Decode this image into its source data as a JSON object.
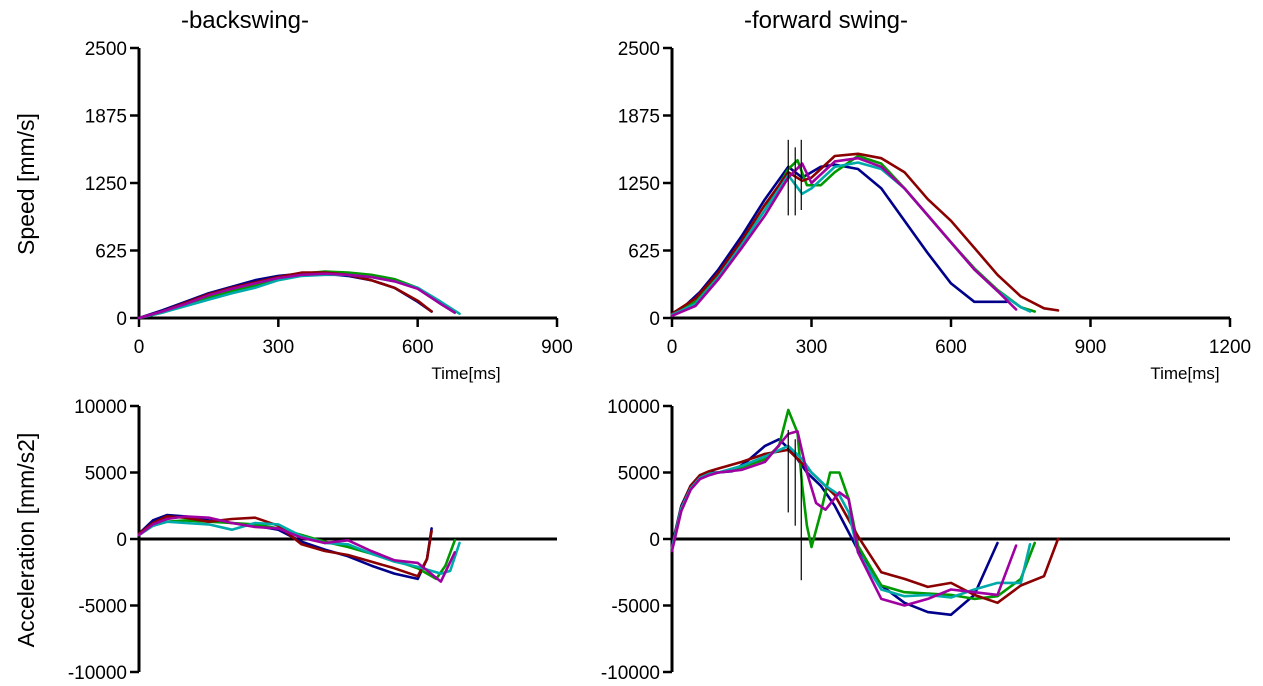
{
  "column_titles": {
    "backswing": "-backswing-",
    "forward": "-forward swing-"
  },
  "row_titles": {
    "speed": "Speed [mm/s]",
    "acceleration": "Acceleration [mm/s2]"
  },
  "series_colors": [
    "#00008B",
    "#009900",
    "#8B0000",
    "#00AAAA",
    "#A000A0"
  ],
  "chart_data": [
    {
      "id": "speed-backswing",
      "type": "line",
      "xlabel": "Time[ms]",
      "ylabel": "Speed [mm/s]",
      "xlim": [
        0,
        900
      ],
      "ylim": [
        0,
        2500
      ],
      "xticks": [
        0,
        300,
        600,
        900
      ],
      "yticks": [
        0,
        625,
        1250,
        1875,
        2500
      ],
      "series": [
        {
          "color": "#00008B",
          "x": [
            0,
            50,
            100,
            150,
            200,
            250,
            300,
            350,
            400,
            450,
            500,
            550,
            600,
            630
          ],
          "y": [
            0,
            70,
            150,
            230,
            290,
            350,
            390,
            410,
            410,
            390,
            350,
            280,
            150,
            60
          ]
        },
        {
          "color": "#009900",
          "x": [
            0,
            50,
            100,
            150,
            200,
            250,
            300,
            350,
            400,
            450,
            500,
            550,
            600,
            650,
            680
          ],
          "y": [
            0,
            50,
            120,
            190,
            250,
            300,
            370,
            410,
            430,
            420,
            400,
            360,
            280,
            130,
            50
          ]
        },
        {
          "color": "#8B0000",
          "x": [
            0,
            50,
            100,
            150,
            200,
            250,
            300,
            350,
            400,
            450,
            500,
            550,
            600,
            630
          ],
          "y": [
            0,
            60,
            140,
            220,
            280,
            330,
            380,
            420,
            420,
            400,
            350,
            280,
            160,
            60
          ]
        },
        {
          "color": "#00AAAA",
          "x": [
            0,
            50,
            100,
            150,
            200,
            250,
            300,
            350,
            400,
            450,
            500,
            550,
            600,
            650,
            690
          ],
          "y": [
            0,
            50,
            110,
            170,
            230,
            280,
            350,
            390,
            400,
            400,
            380,
            340,
            280,
            150,
            40
          ]
        },
        {
          "color": "#A000A0",
          "x": [
            0,
            50,
            100,
            150,
            200,
            250,
            300,
            350,
            400,
            450,
            500,
            550,
            600,
            650,
            680
          ],
          "y": [
            0,
            60,
            130,
            210,
            270,
            320,
            370,
            400,
            410,
            400,
            380,
            340,
            270,
            130,
            50
          ]
        }
      ]
    },
    {
      "id": "speed-forward",
      "type": "line",
      "xlabel": "Time[ms]",
      "ylabel": "",
      "xlim": [
        0,
        1200
      ],
      "ylim": [
        0,
        2500
      ],
      "xticks": [
        0,
        300,
        600,
        900,
        1200
      ],
      "yticks": [
        0,
        625,
        1250,
        1875,
        2500
      ],
      "marker_lines": [
        {
          "x": 250,
          "y0": 950,
          "y1": 1650
        },
        {
          "x": 265,
          "y0": 950,
          "y1": 1580
        },
        {
          "x": 278,
          "y0": 1000,
          "y1": 1650
        }
      ],
      "series": [
        {
          "color": "#00008B",
          "x": [
            0,
            30,
            60,
            100,
            150,
            200,
            250,
            280,
            320,
            350,
            400,
            450,
            500,
            550,
            600,
            650,
            700,
            720
          ],
          "y": [
            40,
            120,
            240,
            450,
            760,
            1100,
            1400,
            1300,
            1400,
            1420,
            1380,
            1200,
            900,
            600,
            320,
            150,
            150,
            150
          ]
        },
        {
          "color": "#009900",
          "x": [
            0,
            50,
            100,
            150,
            200,
            250,
            270,
            290,
            320,
            350,
            400,
            450,
            500,
            550,
            600,
            650,
            700,
            750,
            780
          ],
          "y": [
            30,
            150,
            400,
            690,
            1000,
            1380,
            1460,
            1230,
            1230,
            1350,
            1500,
            1430,
            1200,
            950,
            700,
            460,
            260,
            100,
            60
          ]
        },
        {
          "color": "#8B0000",
          "x": [
            0,
            50,
            100,
            150,
            200,
            250,
            280,
            300,
            350,
            400,
            450,
            500,
            550,
            600,
            650,
            700,
            750,
            800,
            830
          ],
          "y": [
            40,
            180,
            420,
            720,
            1050,
            1350,
            1270,
            1300,
            1500,
            1520,
            1480,
            1350,
            1100,
            900,
            650,
            400,
            200,
            90,
            70
          ]
        },
        {
          "color": "#00AAAA",
          "x": [
            0,
            50,
            100,
            150,
            200,
            250,
            280,
            300,
            350,
            400,
            450,
            500,
            550,
            600,
            650,
            700,
            750,
            770
          ],
          "y": [
            30,
            130,
            380,
            680,
            1000,
            1320,
            1150,
            1200,
            1400,
            1440,
            1380,
            1200,
            950,
            700,
            450,
            250,
            100,
            60
          ]
        },
        {
          "color": "#A000A0",
          "x": [
            0,
            50,
            100,
            150,
            200,
            250,
            280,
            300,
            350,
            400,
            450,
            500,
            550,
            600,
            650,
            700,
            740
          ],
          "y": [
            20,
            110,
            360,
            650,
            950,
            1300,
            1430,
            1250,
            1450,
            1480,
            1400,
            1200,
            950,
            700,
            450,
            250,
            80
          ]
        }
      ]
    },
    {
      "id": "acceleration-backswing",
      "type": "line",
      "xlabel": "",
      "ylabel": "Acceleration [mm/s2]",
      "xlim": [
        0,
        900
      ],
      "ylim": [
        -10000,
        10000
      ],
      "xticks": [],
      "yticks": [
        -10000,
        -5000,
        0,
        5000,
        10000
      ],
      "series": [
        {
          "color": "#00008B",
          "x": [
            0,
            30,
            60,
            100,
            150,
            200,
            250,
            300,
            350,
            400,
            450,
            500,
            550,
            600,
            620,
            630
          ],
          "y": [
            400,
            1400,
            1800,
            1700,
            1400,
            1200,
            1000,
            700,
            -200,
            -800,
            -1300,
            -2000,
            -2600,
            -3000,
            -1500,
            800
          ]
        },
        {
          "color": "#009900",
          "x": [
            0,
            30,
            60,
            100,
            150,
            200,
            250,
            300,
            350,
            400,
            450,
            500,
            550,
            600,
            640,
            660,
            680
          ],
          "y": [
            300,
            1000,
            1300,
            1400,
            1300,
            1200,
            1100,
            800,
            300,
            -200,
            -600,
            -1100,
            -1600,
            -2200,
            -3000,
            -2000,
            -100
          ]
        },
        {
          "color": "#8B0000",
          "x": [
            0,
            30,
            60,
            100,
            150,
            200,
            250,
            300,
            350,
            400,
            450,
            500,
            550,
            600,
            620,
            630
          ],
          "y": [
            400,
            1200,
            1700,
            1600,
            1300,
            1500,
            1600,
            1000,
            -400,
            -900,
            -1200,
            -1700,
            -2200,
            -2800,
            -1500,
            600
          ]
        },
        {
          "color": "#00AAAA",
          "x": [
            0,
            30,
            60,
            100,
            150,
            200,
            250,
            300,
            350,
            400,
            450,
            500,
            550,
            600,
            650,
            670,
            690
          ],
          "y": [
            300,
            1000,
            1300,
            1200,
            1100,
            700,
            1200,
            1100,
            200,
            -300,
            -400,
            -1100,
            -1700,
            -2100,
            -2600,
            -2400,
            -300
          ]
        },
        {
          "color": "#A000A0",
          "x": [
            0,
            30,
            60,
            100,
            150,
            200,
            250,
            300,
            350,
            400,
            450,
            500,
            550,
            600,
            650,
            680
          ],
          "y": [
            300,
            1100,
            1500,
            1700,
            1600,
            1200,
            900,
            800,
            100,
            -300,
            -100,
            -900,
            -1600,
            -1800,
            -3200,
            -1000
          ]
        }
      ]
    },
    {
      "id": "acceleration-forward",
      "type": "line",
      "xlabel": "",
      "ylabel": "",
      "xlim": [
        0,
        1200
      ],
      "ylim": [
        -10000,
        10000
      ],
      "xticks": [],
      "yticks": [
        -10000,
        -5000,
        0,
        5000,
        10000
      ],
      "marker_lines": [
        {
          "x": 250,
          "y0": 2000,
          "y1": 8200
        },
        {
          "x": 265,
          "y0": 1000,
          "y1": 7500
        },
        {
          "x": 278,
          "y0": -3100,
          "y1": 5300
        }
      ],
      "series": [
        {
          "color": "#00008B",
          "x": [
            0,
            20,
            40,
            60,
            80,
            100,
            130,
            160,
            200,
            230,
            260,
            290,
            320,
            350,
            380,
            410,
            450,
            500,
            550,
            600,
            650,
            700
          ],
          "y": [
            -500,
            2500,
            4000,
            4800,
            5000,
            5000,
            5100,
            5800,
            7000,
            7500,
            6500,
            5000,
            4000,
            2500,
            500,
            -1500,
            -3500,
            -4800,
            -5500,
            -5700,
            -4200,
            -300
          ]
        },
        {
          "color": "#009900",
          "x": [
            0,
            20,
            40,
            60,
            80,
            100,
            150,
            200,
            230,
            250,
            270,
            280,
            290,
            300,
            320,
            340,
            360,
            380,
            400,
            450,
            500,
            600,
            650,
            700,
            750,
            780
          ],
          "y": [
            -700,
            2200,
            3800,
            4600,
            4900,
            5000,
            5400,
            6000,
            7000,
            9700,
            8000,
            4000,
            1000,
            -600,
            2000,
            5000,
            5000,
            3000,
            -500,
            -3500,
            -4000,
            -4200,
            -4500,
            -4300,
            -3000,
            -300
          ]
        },
        {
          "color": "#8B0000",
          "x": [
            0,
            20,
            40,
            60,
            80,
            100,
            150,
            200,
            250,
            300,
            350,
            400,
            450,
            500,
            550,
            600,
            650,
            700,
            750,
            800,
            830
          ],
          "y": [
            -600,
            2400,
            4000,
            4800,
            5100,
            5300,
            5800,
            6400,
            6700,
            5000,
            3300,
            200,
            -2500,
            -3000,
            -3600,
            -3300,
            -4200,
            -4800,
            -3500,
            -2800,
            0
          ]
        },
        {
          "color": "#00AAAA",
          "x": [
            0,
            20,
            40,
            60,
            80,
            100,
            150,
            200,
            250,
            280,
            300,
            330,
            360,
            380,
            400,
            450,
            500,
            550,
            600,
            650,
            700,
            750,
            770
          ],
          "y": [
            -700,
            2300,
            3800,
            4600,
            4900,
            5000,
            5500,
            6200,
            7000,
            6000,
            5000,
            4000,
            3300,
            2000,
            -1000,
            -3800,
            -4300,
            -4200,
            -4400,
            -3800,
            -3300,
            -3300,
            -400
          ]
        },
        {
          "color": "#A000A0",
          "x": [
            0,
            20,
            40,
            60,
            80,
            100,
            150,
            200,
            250,
            270,
            290,
            310,
            330,
            360,
            380,
            400,
            450,
            500,
            550,
            600,
            650,
            700,
            740
          ],
          "y": [
            -900,
            2100,
            3700,
            4500,
            4800,
            5000,
            5200,
            5800,
            7900,
            8100,
            5000,
            2700,
            2200,
            3500,
            3000,
            -1000,
            -4500,
            -5000,
            -4500,
            -3800,
            -4000,
            -4200,
            -500
          ]
        }
      ]
    }
  ]
}
